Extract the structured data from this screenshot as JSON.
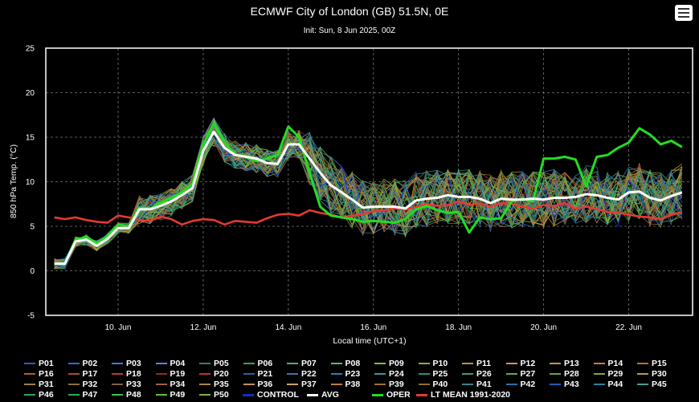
{
  "title": "ECMWF City of London (GB) 51.5N, 0E",
  "subtitle": "Init: Sun, 8 Jun 2025, 00Z",
  "menu_icon": "hamburger-menu-icon",
  "chart_data": {
    "type": "line",
    "title": "ECMWF City of London (GB) 51.5N, 0E",
    "subtitle": "Init: Sun, 8 Jun 2025, 00Z",
    "xlabel": "Local time (UTC+1)",
    "ylabel": "850 hPa Temp. (°C)",
    "ylim": [
      -5,
      25
    ],
    "yticks": [
      -5,
      0,
      5,
      10,
      15,
      20,
      25
    ],
    "xlim": [
      8.3,
      23.5
    ],
    "xticks": [
      {
        "x": 10,
        "label": "10. Jun"
      },
      {
        "x": 12,
        "label": "12. Jun"
      },
      {
        "x": 14,
        "label": "14. Jun"
      },
      {
        "x": 16,
        "label": "16. Jun"
      },
      {
        "x": 18,
        "label": "18. Jun"
      },
      {
        "x": 20,
        "label": "20. Jun"
      },
      {
        "x": 22,
        "label": "22. Jun"
      }
    ],
    "grid": true,
    "legend_position": "bottom",
    "ensemble_members": [
      "P01",
      "P02",
      "P03",
      "P04",
      "P05",
      "P06",
      "P07",
      "P08",
      "P09",
      "P10",
      "P11",
      "P12",
      "P13",
      "P14",
      "P15",
      "P16",
      "P17",
      "P18",
      "P19",
      "P20",
      "P21",
      "P22",
      "P23",
      "P24",
      "P25",
      "P26",
      "P27",
      "P28",
      "P29",
      "P30",
      "P31",
      "P32",
      "P33",
      "P34",
      "P35",
      "P36",
      "P37",
      "P38",
      "P39",
      "P40",
      "P41",
      "P42",
      "P43",
      "P44",
      "P45",
      "P46",
      "P47",
      "P48",
      "P49",
      "P50",
      "CONTROL"
    ],
    "member_colors": [
      "#2b5fb8",
      "#2b6fd0",
      "#3a7fd8",
      "#4a8fe0",
      "#2e8b57",
      "#3aa060",
      "#4cb070",
      "#5ac060",
      "#7ac050",
      "#8ab040",
      "#b89a30",
      "#c8a040",
      "#d09040",
      "#c88030",
      "#c07020",
      "#b06020",
      "#a05030",
      "#b04030",
      "#903020",
      "#c03030",
      "#3060a0",
      "#4070b0",
      "#2a80c0",
      "#3a90b0",
      "#2a9080",
      "#40a070",
      "#50b060",
      "#70a040",
      "#90a030",
      "#b0a040",
      "#a08040",
      "#907030",
      "#806040",
      "#a06040",
      "#b08050",
      "#c09060",
      "#d0a060",
      "#c08040",
      "#a07030",
      "#907020",
      "#408090",
      "#3070a0",
      "#2060b0",
      "#3080a0",
      "#40a090",
      "#30a070",
      "#20b060",
      "#40c050",
      "#60c040",
      "#80b040",
      "#1030c0"
    ],
    "series": [
      {
        "name": "AVG",
        "color": "#ffffff",
        "points": [
          [
            8.5,
            0.8
          ],
          [
            8.75,
            0.8
          ],
          [
            9,
            3.3
          ],
          [
            9.25,
            3.5
          ],
          [
            9.5,
            2.8
          ],
          [
            9.75,
            3.6
          ],
          [
            10,
            4.8
          ],
          [
            10.25,
            4.8
          ],
          [
            10.5,
            6.9
          ],
          [
            10.75,
            6.9
          ],
          [
            11,
            7.3
          ],
          [
            11.25,
            7.8
          ],
          [
            11.5,
            8.5
          ],
          [
            11.75,
            9.3
          ],
          [
            12,
            13.5
          ],
          [
            12.25,
            15.6
          ],
          [
            12.5,
            13.8
          ],
          [
            12.75,
            13.0
          ],
          [
            13,
            12.8
          ],
          [
            13.25,
            12.6
          ],
          [
            13.5,
            12.1
          ],
          [
            13.75,
            12.0
          ],
          [
            14,
            14.2
          ],
          [
            14.25,
            14.2
          ],
          [
            14.5,
            12.6
          ],
          [
            14.75,
            11.0
          ],
          [
            15,
            9.6
          ],
          [
            15.25,
            8.8
          ],
          [
            15.5,
            8.0
          ],
          [
            15.75,
            7.1
          ],
          [
            16,
            7.2
          ],
          [
            16.25,
            7.2
          ],
          [
            16.5,
            7.2
          ],
          [
            16.75,
            7.0
          ],
          [
            17,
            7.9
          ],
          [
            17.25,
            8.1
          ],
          [
            17.5,
            8.2
          ],
          [
            17.75,
            8.5
          ],
          [
            18,
            8.3
          ],
          [
            18.25,
            8.3
          ],
          [
            18.5,
            8.1
          ],
          [
            18.75,
            7.6
          ],
          [
            19,
            8.1
          ],
          [
            19.25,
            8.0
          ],
          [
            19.5,
            8.0
          ],
          [
            19.75,
            8.1
          ],
          [
            20,
            8.0
          ],
          [
            20.25,
            8.2
          ],
          [
            20.5,
            8.2
          ],
          [
            20.75,
            8.3
          ],
          [
            21,
            8.6
          ],
          [
            21.25,
            8.5
          ],
          [
            21.5,
            8.2
          ],
          [
            21.75,
            8.0
          ],
          [
            22,
            8.8
          ],
          [
            22.25,
            8.9
          ],
          [
            22.5,
            8.2
          ],
          [
            22.75,
            7.9
          ],
          [
            23,
            8.4
          ],
          [
            23.25,
            8.8
          ]
        ]
      },
      {
        "name": "OPER",
        "color": "#22dd22",
        "points": [
          [
            8.5,
            0.8
          ],
          [
            8.75,
            0.8
          ],
          [
            9,
            3.5
          ],
          [
            9.25,
            3.8
          ],
          [
            9.5,
            3.1
          ],
          [
            9.75,
            3.9
          ],
          [
            10,
            5.2
          ],
          [
            10.25,
            5.0
          ],
          [
            10.5,
            7.1
          ],
          [
            10.75,
            7.0
          ],
          [
            11,
            7.6
          ],
          [
            11.25,
            8.2
          ],
          [
            11.5,
            8.8
          ],
          [
            11.75,
            9.8
          ],
          [
            12,
            14.2
          ],
          [
            12.25,
            16.6
          ],
          [
            12.5,
            14.4
          ],
          [
            12.75,
            13.1
          ],
          [
            13,
            12.8
          ],
          [
            13.25,
            12.3
          ],
          [
            13.5,
            12.6
          ],
          [
            13.75,
            13.0
          ],
          [
            14,
            16.2
          ],
          [
            14.25,
            15.0
          ],
          [
            14.5,
            11.0
          ],
          [
            14.75,
            7.2
          ],
          [
            15,
            6.2
          ],
          [
            15.25,
            6.0
          ],
          [
            15.5,
            5.8
          ],
          [
            15.75,
            5.5
          ],
          [
            16,
            5.6
          ],
          [
            16.25,
            5.5
          ],
          [
            16.5,
            5.4
          ],
          [
            16.75,
            5.8
          ],
          [
            17,
            6.9
          ],
          [
            17.25,
            7.3
          ],
          [
            17.5,
            6.8
          ],
          [
            17.75,
            6.5
          ],
          [
            18,
            6.6
          ],
          [
            18.25,
            4.3
          ],
          [
            18.5,
            6.0
          ],
          [
            18.75,
            5.8
          ],
          [
            19,
            5.9
          ],
          [
            19.25,
            7.8
          ],
          [
            19.5,
            8.1
          ],
          [
            19.75,
            7.8
          ],
          [
            20,
            12.6
          ],
          [
            20.25,
            12.6
          ],
          [
            20.5,
            12.8
          ],
          [
            20.75,
            12.5
          ],
          [
            21,
            9.5
          ],
          [
            21.25,
            12.8
          ],
          [
            21.5,
            13.0
          ],
          [
            21.75,
            13.8
          ],
          [
            22,
            14.4
          ],
          [
            22.25,
            16.0
          ],
          [
            22.5,
            15.3
          ],
          [
            22.75,
            14.2
          ],
          [
            23,
            14.6
          ],
          [
            23.25,
            13.9
          ]
        ]
      },
      {
        "name": "LT MEAN 1991-2020",
        "color": "#e53935",
        "points": [
          [
            8.5,
            6.0
          ],
          [
            8.75,
            5.8
          ],
          [
            9,
            6.0
          ],
          [
            9.25,
            5.7
          ],
          [
            9.5,
            5.5
          ],
          [
            9.75,
            5.4
          ],
          [
            10,
            6.2
          ],
          [
            10.25,
            6.0
          ],
          [
            10.5,
            5.7
          ],
          [
            10.75,
            5.6
          ],
          [
            11,
            6.1
          ],
          [
            11.25,
            5.8
          ],
          [
            11.5,
            5.2
          ],
          [
            11.75,
            5.6
          ],
          [
            12,
            5.8
          ],
          [
            12.25,
            5.7
          ],
          [
            12.5,
            5.2
          ],
          [
            12.75,
            5.6
          ],
          [
            13,
            5.5
          ],
          [
            13.25,
            5.4
          ],
          [
            13.5,
            5.9
          ],
          [
            13.75,
            6.3
          ],
          [
            14,
            6.4
          ],
          [
            14.25,
            6.2
          ],
          [
            14.5,
            6.8
          ],
          [
            14.75,
            6.5
          ],
          [
            15,
            6.3
          ],
          [
            15.25,
            6.0
          ],
          [
            15.5,
            6.2
          ],
          [
            15.75,
            6.4
          ],
          [
            16,
            6.7
          ],
          [
            16.25,
            6.8
          ],
          [
            16.5,
            7.0
          ],
          [
            16.75,
            6.9
          ],
          [
            17,
            7.2
          ],
          [
            17.25,
            7.5
          ],
          [
            17.5,
            7.3
          ],
          [
            17.75,
            7.4
          ],
          [
            18,
            7.8
          ],
          [
            18.25,
            7.4
          ],
          [
            18.5,
            7.6
          ],
          [
            18.75,
            7.2
          ],
          [
            19,
            7.6
          ],
          [
            19.25,
            7.5
          ],
          [
            19.5,
            7.2
          ],
          [
            19.75,
            7.0
          ],
          [
            20,
            7.4
          ],
          [
            20.25,
            7.3
          ],
          [
            20.5,
            7.6
          ],
          [
            20.75,
            7.0
          ],
          [
            21,
            7.2
          ],
          [
            21.25,
            6.9
          ],
          [
            21.5,
            6.6
          ],
          [
            21.75,
            6.5
          ],
          [
            22,
            6.3
          ],
          [
            22.25,
            6.1
          ],
          [
            22.5,
            6.0
          ],
          [
            22.75,
            5.8
          ],
          [
            23,
            6.3
          ],
          [
            23.25,
            6.6
          ]
        ]
      }
    ]
  },
  "legend": {
    "members": [
      "P01",
      "P02",
      "P03",
      "P04",
      "P05",
      "P06",
      "P07",
      "P08",
      "P09",
      "P10",
      "P11",
      "P12",
      "P13",
      "P14",
      "P15",
      "P16",
      "P17",
      "P18",
      "P19",
      "P20",
      "P21",
      "P22",
      "P23",
      "P24",
      "P25",
      "P26",
      "P27",
      "P28",
      "P29",
      "P30",
      "P31",
      "P32",
      "P33",
      "P34",
      "P35",
      "P36",
      "P37",
      "P38",
      "P39",
      "P40",
      "P41",
      "P42",
      "P43",
      "P44",
      "P45",
      "P46",
      "P47",
      "P48",
      "P49",
      "P50"
    ],
    "extra": [
      {
        "label": "CONTROL",
        "color": "#1030c0"
      },
      {
        "label": "AVG",
        "color": "#ffffff"
      },
      {
        "label": "OPER",
        "color": "#22dd22"
      },
      {
        "label": "LT MEAN 1991-2020",
        "color": "#e53935"
      }
    ]
  }
}
